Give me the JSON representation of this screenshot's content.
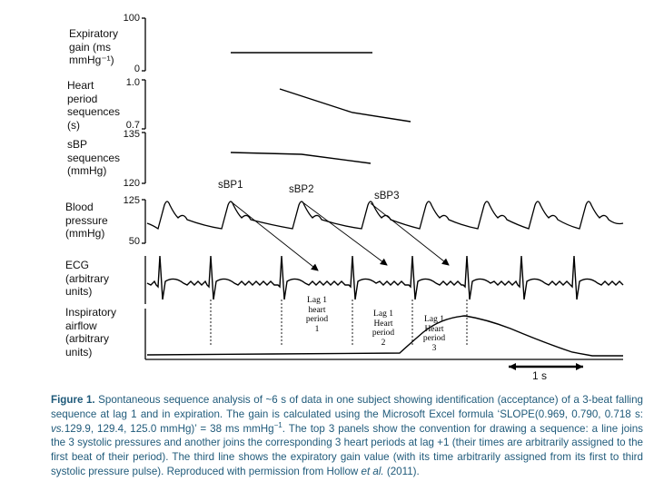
{
  "panels": {
    "expiratory_gain": {
      "label_lines": [
        "Expiratory",
        "gain (ms",
        "mmHg⁻¹)"
      ],
      "tick_top": "100",
      "tick_bottom": "0"
    },
    "heart_period": {
      "label_lines": [
        "Heart",
        "period",
        "sequences",
        "(s)"
      ],
      "tick_top": "1.0",
      "tick_bottom": "0.7"
    },
    "sbp_sequences": {
      "label_lines": [
        "sBP",
        "sequences",
        "(mmHg)"
      ],
      "tick_top": "135",
      "tick_bottom": "120"
    },
    "blood_pressure": {
      "label_lines": [
        "Blood",
        "pressure",
        "(mmHg)"
      ],
      "tick_top": "125",
      "tick_bottom": "50"
    },
    "ecg": {
      "label_lines": [
        "ECG",
        "(arbitrary",
        "units)"
      ]
    },
    "airflow": {
      "label_lines": [
        "Inspiratory",
        "airflow",
        "(arbitrary",
        "units)"
      ]
    }
  },
  "sbp_labels": [
    "sBP1",
    "sBP2",
    "sBP3"
  ],
  "lag_labels": [
    {
      "lines": [
        "Lag 1",
        "heart",
        "period",
        "1"
      ]
    },
    {
      "lines": [
        "Lag 1",
        "Heart",
        "period",
        "2"
      ]
    },
    {
      "lines": [
        "Lag 1",
        "Heart",
        "period",
        "3"
      ]
    }
  ],
  "scale_bar": {
    "label": "1 s"
  },
  "caption": {
    "figure_label": "Figure 1.",
    "text_before_italic": " Spontaneous sequence analysis of ~6 s of data in one subject showing identification (acceptance) of a  3-beat falling sequence at lag 1 and  in expiration. The gain is calculated using the Microsoft Excel formula ‘SLOPE(0.969, 0.790, 0.718 s: ",
    "italic_vs": "vs.",
    "text_after_italic": "129.9, 129.4, 125.0 mmHg)’ = 38 ms mmHg",
    "superscript": "−1",
    "text_after_sup": ". The top 3 panels show the convention for drawing a sequence: a line joins the 3 systolic pressures and another joins the corresponding 3 heart periods at lag +1 (their times are arbitrarily assigned to the first beat of their period). The third line shows the expiratory gain value (with its time arbitrarily assigned from  its first to third systolic pressure pulse). Reproduced with permission from Hollow ",
    "italic_et_al": "et al.",
    "text_end": " (2011)."
  },
  "sequence_data": {
    "heart_periods_s": [
      0.969,
      0.79,
      0.718
    ],
    "systolic_pressures_mmHg": [
      129.9,
      129.4,
      125.0
    ],
    "gain_ms_per_mmHg": 38
  },
  "colors": {
    "caption": "#1f5a7a",
    "trace": "#000000"
  }
}
